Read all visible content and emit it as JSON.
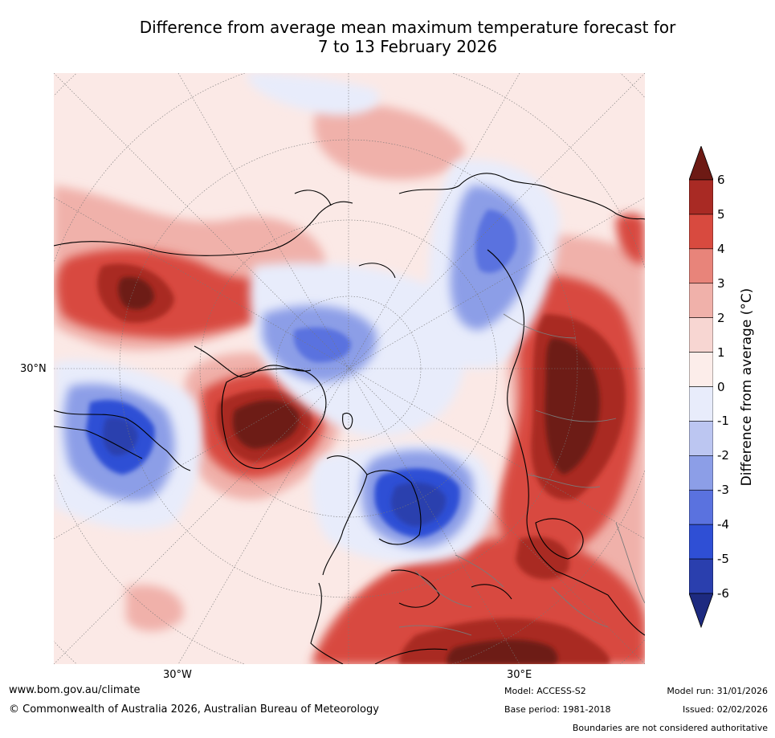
{
  "title": {
    "line1": "Difference from average mean maximum temperature forecast for",
    "line2": "7 to 13 February 2026"
  },
  "map": {
    "lat_label": "30°N",
    "lon_labels": [
      "30°W",
      "30°E"
    ],
    "projection": "north polar stereographic",
    "description": "Temperature anomaly map with coastlines and national boundaries"
  },
  "colorbar": {
    "label": "Difference from average (°C)",
    "ticks": [
      "6",
      "5",
      "4",
      "3",
      "2",
      "1",
      "0",
      "-1",
      "-2",
      "-3",
      "-4",
      "-5",
      "-6"
    ],
    "colors": [
      "#6d1a14",
      "#a92a24",
      "#d84a3f",
      "#e8847a",
      "#f0b1aa",
      "#f7d6d2",
      "#fcedea",
      "#e8ecfb",
      "#bcc6f1",
      "#8c9ee7",
      "#5a72df",
      "#2f4fd5",
      "#2a3fae",
      "#1d2a80"
    ]
  },
  "footer": {
    "website": "www.bom.gov.au/climate",
    "copyright": "© Commonwealth of Australia 2026, Australian Bureau of Meteorology",
    "model": "Model: ACCESS-S2",
    "base_period": "Base period: 1981-2018",
    "model_run": "Model run: 31/01/2026",
    "issued": "Issued: 02/02/2026",
    "disclaimer": "Boundaries are not considered authoritative"
  }
}
